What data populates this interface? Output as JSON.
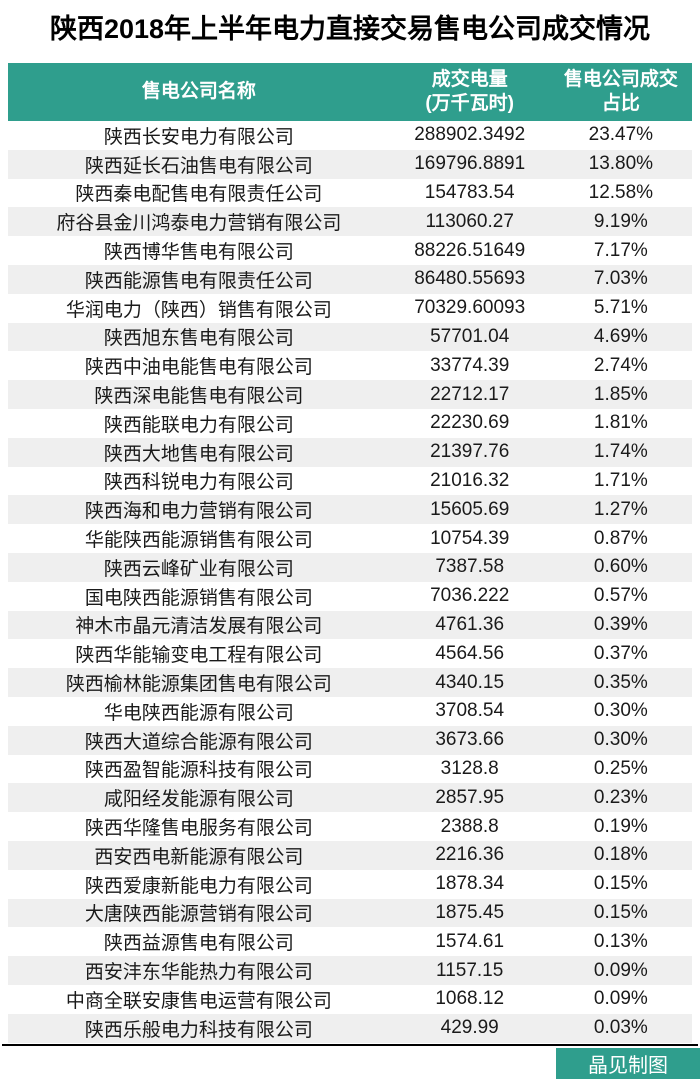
{
  "title": "陕西2018年上半年电力直接交易售电公司成交情况",
  "colors": {
    "accent": "#2f9e8d",
    "stripe": "#efefef",
    "header_text": "#ffffff",
    "body_text": "#1a1a1a"
  },
  "table": {
    "headers": [
      {
        "line1": "售电公司名称",
        "line2": ""
      },
      {
        "line1": "成交电量",
        "line2": "(万千瓦时)"
      },
      {
        "line1": "售电公司成交",
        "line2": "占比"
      }
    ]
  },
  "footer": {
    "credit": "晶见制图"
  },
  "chart_data": {
    "type": "table",
    "title": "陕西2018年上半年电力直接交易售电公司成交情况",
    "columns": [
      "售电公司名称",
      "成交电量(万千瓦时)",
      "售电公司成交占比"
    ],
    "rows": [
      [
        "陕西长安电力有限公司",
        "288902.3492",
        "23.47%"
      ],
      [
        "陕西延长石油售电有限公司",
        "169796.8891",
        "13.80%"
      ],
      [
        "陕西秦电配售电有限责任公司",
        "154783.54",
        "12.58%"
      ],
      [
        "府谷县金川鸿泰电力营销有限公司",
        "113060.27",
        "9.19%"
      ],
      [
        "陕西博华售电有限公司",
        "88226.51649",
        "7.17%"
      ],
      [
        "陕西能源售电有限责任公司",
        "86480.55693",
        "7.03%"
      ],
      [
        "华润电力（陕西）销售有限公司",
        "70329.60093",
        "5.71%"
      ],
      [
        "陕西旭东售电有限公司",
        "57701.04",
        "4.69%"
      ],
      [
        "陕西中油电能售电有限公司",
        "33774.39",
        "2.74%"
      ],
      [
        "陕西深电能售电有限公司",
        "22712.17",
        "1.85%"
      ],
      [
        "陕西能联电力有限公司",
        "22230.69",
        "1.81%"
      ],
      [
        "陕西大地售电有限公司",
        "21397.76",
        "1.74%"
      ],
      [
        "陕西科锐电力有限公司",
        "21016.32",
        "1.71%"
      ],
      [
        "陕西海和电力营销有限公司",
        "15605.69",
        "1.27%"
      ],
      [
        "华能陕西能源销售有限公司",
        "10754.39",
        "0.87%"
      ],
      [
        "陕西云峰矿业有限公司",
        "7387.58",
        "0.60%"
      ],
      [
        "国电陕西能源销售有限公司",
        "7036.222",
        "0.57%"
      ],
      [
        "神木市晶元清洁发展有限公司",
        "4761.36",
        "0.39%"
      ],
      [
        "陕西华能输变电工程有限公司",
        "4564.56",
        "0.37%"
      ],
      [
        "陕西榆林能源集团售电有限公司",
        "4340.15",
        "0.35%"
      ],
      [
        "华电陕西能源有限公司",
        "3708.54",
        "0.30%"
      ],
      [
        "陕西大道综合能源有限公司",
        "3673.66",
        "0.30%"
      ],
      [
        "陕西盈智能源科技有限公司",
        "3128.8",
        "0.25%"
      ],
      [
        "咸阳经发能源有限公司",
        "2857.95",
        "0.23%"
      ],
      [
        "陕西华隆售电服务有限公司",
        "2388.8",
        "0.19%"
      ],
      [
        "西安西电新能源有限公司",
        "2216.36",
        "0.18%"
      ],
      [
        "陕西爱康新能电力有限公司",
        "1878.34",
        "0.15%"
      ],
      [
        "大唐陕西能源营销有限公司",
        "1875.45",
        "0.15%"
      ],
      [
        "陕西益源售电有限公司",
        "1574.61",
        "0.13%"
      ],
      [
        "西安沣东华能热力有限公司",
        "1157.15",
        "0.09%"
      ],
      [
        "中商全联安康售电运营有限公司",
        "1068.12",
        "0.09%"
      ],
      [
        "陕西乐般电力科技有限公司",
        "429.99",
        "0.03%"
      ]
    ]
  }
}
